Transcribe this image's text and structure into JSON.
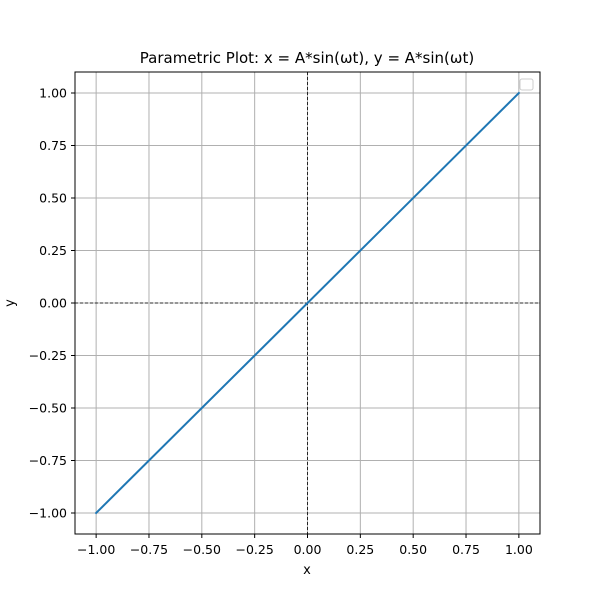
{
  "chart_data": {
    "type": "line",
    "title": "Parametric Plot: x = A*sin(ωt), y = A*sin(ωt)",
    "xlabel": "x",
    "ylabel": "y",
    "xlim": [
      -1.1,
      1.1
    ],
    "ylim": [
      -1.1,
      1.1
    ],
    "xticks": [
      -1.0,
      -0.75,
      -0.5,
      -0.25,
      0.0,
      0.25,
      0.5,
      0.75,
      1.0
    ],
    "yticks": [
      -1.0,
      -0.75,
      -0.5,
      -0.25,
      0.0,
      0.25,
      0.5,
      0.75,
      1.0
    ],
    "xtick_labels": [
      "−1.00",
      "−0.75",
      "−0.50",
      "−0.25",
      "0.00",
      "0.25",
      "0.50",
      "0.75",
      "1.00"
    ],
    "ytick_labels": [
      "−1.00",
      "−0.75",
      "−0.50",
      "−0.25",
      "0.00",
      "0.25",
      "0.50",
      "0.75",
      "1.00"
    ],
    "grid": true,
    "legend": "upper-right (empty)",
    "reference_lines": {
      "x": 0,
      "y": 0,
      "style": "dashed",
      "color": "#000000"
    },
    "series": [
      {
        "color": "#1f77b4",
        "x": [
          -1.0,
          1.0
        ],
        "y": [
          -1.0,
          1.0
        ]
      }
    ]
  }
}
